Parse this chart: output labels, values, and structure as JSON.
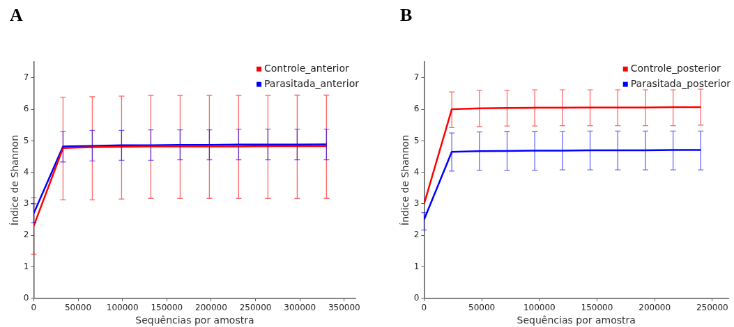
{
  "chart_data": [
    {
      "type": "line",
      "title": "A",
      "xlabel": "Sequências por amostra",
      "ylabel": "Índice de Shannon",
      "xlim": [
        0,
        363000
      ],
      "xticks": [
        0,
        50000,
        100000,
        150000,
        200000,
        250000,
        300000,
        350000
      ],
      "ylim": [
        0,
        7.5
      ],
      "yticks": [
        0,
        1,
        2,
        3,
        4,
        5,
        6,
        7
      ],
      "grid": false,
      "legend": "top right",
      "marker": "none",
      "line_style": "solid",
      "x": [
        0,
        33000,
        66000,
        99000,
        132000,
        165000,
        198000,
        231000,
        264000,
        297000,
        330000
      ],
      "series": [
        {
          "name": "Controle_anterior",
          "color": "#ff0000",
          "values": [
            2.3,
            4.77,
            4.8,
            4.81,
            4.82,
            4.82,
            4.82,
            4.82,
            4.83,
            4.83,
            4.83
          ],
          "errors": [
            [
              1.4,
              3.2
            ],
            [
              3.13,
              6.38
            ],
            [
              3.13,
              6.4
            ],
            [
              3.15,
              6.42
            ],
            [
              3.17,
              6.44
            ],
            [
              3.17,
              6.44
            ],
            [
              3.17,
              6.44
            ],
            [
              3.17,
              6.44
            ],
            [
              3.17,
              6.44
            ],
            [
              3.17,
              6.45
            ],
            [
              3.17,
              6.45
            ]
          ]
        },
        {
          "name": "Parasitada_anterior",
          "color": "#0000ff",
          "values": [
            2.7,
            4.82,
            4.84,
            4.86,
            4.86,
            4.87,
            4.87,
            4.88,
            4.88,
            4.88,
            4.89
          ],
          "errors": [
            [
              2.4,
              3.0
            ],
            [
              4.33,
              5.3
            ],
            [
              4.36,
              5.33
            ],
            [
              4.38,
              5.33
            ],
            [
              4.38,
              5.35
            ],
            [
              4.4,
              5.35
            ],
            [
              4.4,
              5.35
            ],
            [
              4.4,
              5.37
            ],
            [
              4.4,
              5.37
            ],
            [
              4.4,
              5.37
            ],
            [
              4.4,
              5.37
            ]
          ]
        }
      ]
    },
    {
      "type": "line",
      "title": "B",
      "xlabel": "Sequências por amostra",
      "ylabel": "Índice de Shannon",
      "xlim": [
        0,
        264000
      ],
      "xticks": [
        0,
        50000,
        100000,
        150000,
        200000,
        250000
      ],
      "ylim": [
        0,
        7.5
      ],
      "yticks": [
        0,
        1,
        2,
        3,
        4,
        5,
        6,
        7
      ],
      "grid": false,
      "legend": "top right",
      "marker": "none",
      "line_style": "solid",
      "x": [
        0,
        24000,
        48000,
        72000,
        96000,
        120000,
        144000,
        168000,
        192000,
        216000,
        240000
      ],
      "series": [
        {
          "name": "Controle_posterior",
          "color": "#ff0000",
          "values": [
            3.0,
            6.0,
            6.03,
            6.04,
            6.05,
            6.05,
            6.06,
            6.06,
            6.06,
            6.07,
            6.07
          ],
          "errors": [
            null,
            [
              5.42,
              6.55
            ],
            [
              5.45,
              6.6
            ],
            [
              5.47,
              6.6
            ],
            [
              5.47,
              6.62
            ],
            [
              5.48,
              6.62
            ],
            [
              5.48,
              6.62
            ],
            [
              5.48,
              6.62
            ],
            [
              5.48,
              6.62
            ],
            [
              5.48,
              6.62
            ],
            [
              5.5,
              6.64
            ]
          ]
        },
        {
          "name": "Parasitada_posterior",
          "color": "#0000ff",
          "values": [
            2.5,
            4.65,
            4.67,
            4.68,
            4.69,
            4.69,
            4.7,
            4.7,
            4.7,
            4.71,
            4.71
          ],
          "errors": [
            [
              2.17,
              2.72
            ],
            [
              4.04,
              5.25
            ],
            [
              4.06,
              5.28
            ],
            [
              4.06,
              5.29
            ],
            [
              4.06,
              5.29
            ],
            [
              4.08,
              5.3
            ],
            [
              4.08,
              5.31
            ],
            [
              4.08,
              5.31
            ],
            [
              4.08,
              5.31
            ],
            [
              4.08,
              5.31
            ],
            [
              4.08,
              5.31
            ]
          ]
        }
      ]
    }
  ]
}
